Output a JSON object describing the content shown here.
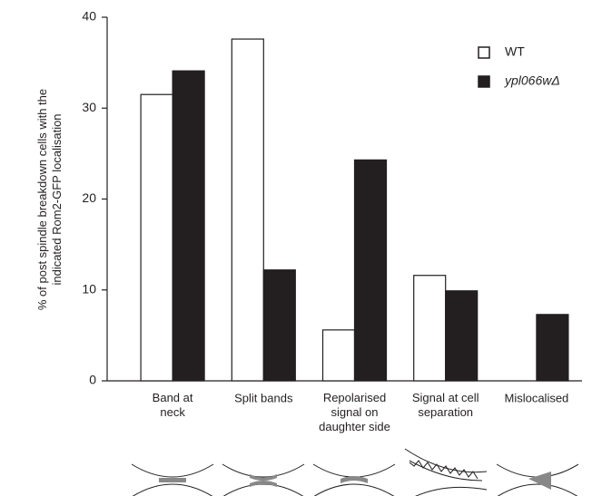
{
  "chart_data": {
    "type": "bar",
    "y_label": "% of post spindle breakdown cells with the\nindicated Rom2-GFP localisation",
    "categories": [
      "Band at\nneck",
      "Split bands",
      "Repolarised\nsignal on\ndaughter side",
      "Signal at cell\nseparation",
      "Mislocalised"
    ],
    "series": [
      {
        "name": "WT",
        "color": "#ffffff",
        "values": [
          31.5,
          37.6,
          5.6,
          11.6,
          0
        ]
      },
      {
        "name": "ypl066wΔ",
        "color": "#231f20",
        "values": [
          34.1,
          12.2,
          24.3,
          9.9,
          7.3
        ]
      }
    ],
    "ylim": [
      0,
      40
    ],
    "yticks": [
      0,
      10,
      20,
      30,
      40
    ],
    "legend": "upper right"
  }
}
